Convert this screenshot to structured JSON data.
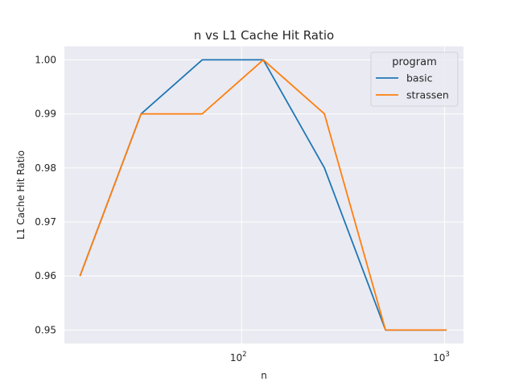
{
  "chart_data": {
    "type": "line",
    "title": "n vs L1 Cache Hit Ratio",
    "xlabel": "n",
    "ylabel": "L1 Cache Hit Ratio",
    "xscale": "log",
    "x": [
      16,
      32,
      64,
      128,
      256,
      512,
      1024
    ],
    "xlim": [
      13.4,
      1240
    ],
    "ylim": [
      0.9475,
      1.0025
    ],
    "yticks": [
      "0.95",
      "0.96",
      "0.97",
      "0.98",
      "0.99",
      "1.00"
    ],
    "xticks": [
      {
        "base": "10",
        "exp": "2",
        "value": 100
      },
      {
        "base": "10",
        "exp": "3",
        "value": 1000
      }
    ],
    "grid": true,
    "legend": {
      "title": "program",
      "position": "top-right"
    },
    "series": [
      {
        "name": "basic",
        "color": "#1f77b4",
        "values": [
          0.96,
          0.99,
          1.0,
          1.0,
          0.98,
          0.95,
          0.95
        ]
      },
      {
        "name": "strassen",
        "color": "#ff7f0e",
        "values": [
          0.96,
          0.99,
          0.99,
          1.0,
          0.99,
          0.95,
          0.95
        ]
      }
    ]
  }
}
